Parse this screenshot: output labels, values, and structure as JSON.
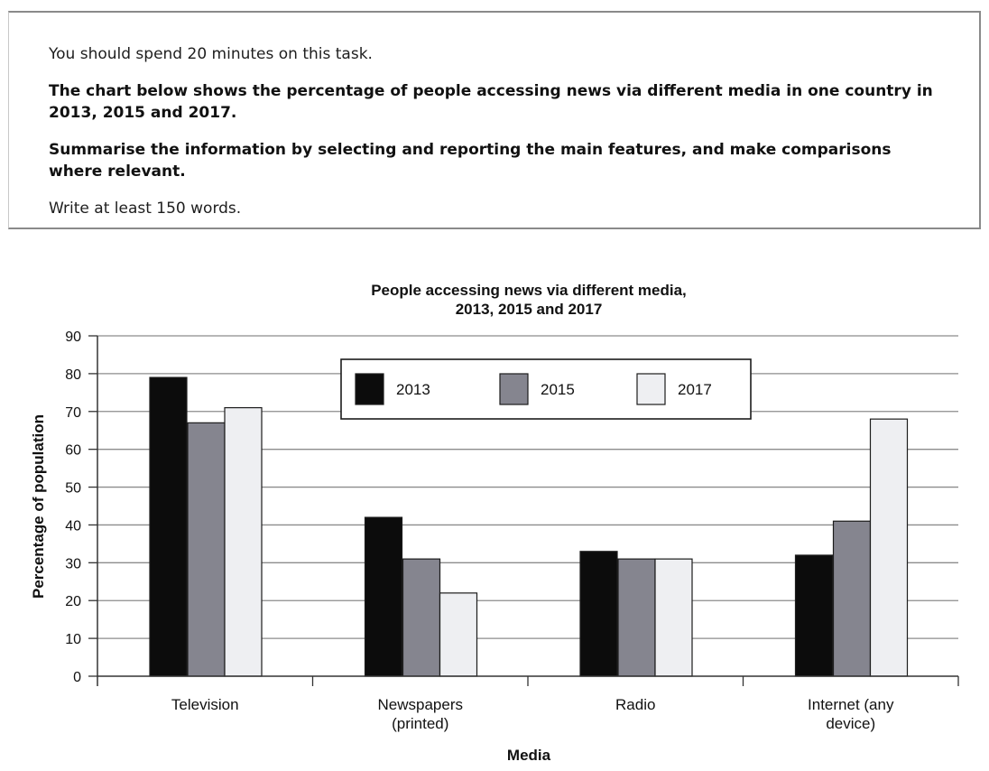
{
  "task": {
    "time_instruction": "You should spend 20 minutes on this task.",
    "description_line1": "The chart below shows the percentage of people accessing news via different media in one country in",
    "description_line2": "2013, 2015 and 2017.",
    "instruction_line1": "Summarise the information by selecting and reporting the main features, and make comparisons",
    "instruction_line2": "where relevant.",
    "word_count": "Write at least 150 words."
  },
  "chart_data": {
    "type": "bar",
    "title": [
      "People accessing news via different media,",
      "2013, 2015 and 2017"
    ],
    "xlabel": "Media",
    "ylabel": "Percentage of population",
    "categories": [
      [
        "Television"
      ],
      [
        "Newspapers",
        "(printed)"
      ],
      [
        "Radio"
      ],
      [
        "Internet (any",
        "device)"
      ]
    ],
    "series": [
      {
        "name": "2013",
        "color": "#0c0c0c",
        "values": [
          79,
          42,
          33,
          32
        ]
      },
      {
        "name": "2015",
        "color": "#85858f",
        "values": [
          67,
          31,
          31,
          41
        ]
      },
      {
        "name": "2017",
        "color": "#eeeff2",
        "values": [
          71,
          22,
          31,
          68
        ]
      }
    ],
    "ylim": [
      0,
      90
    ],
    "yticks": [
      "0",
      "10",
      "20",
      "30",
      "40",
      "50",
      "60",
      "70",
      "80",
      "90"
    ],
    "grid": true,
    "legend_position": "top-center"
  }
}
